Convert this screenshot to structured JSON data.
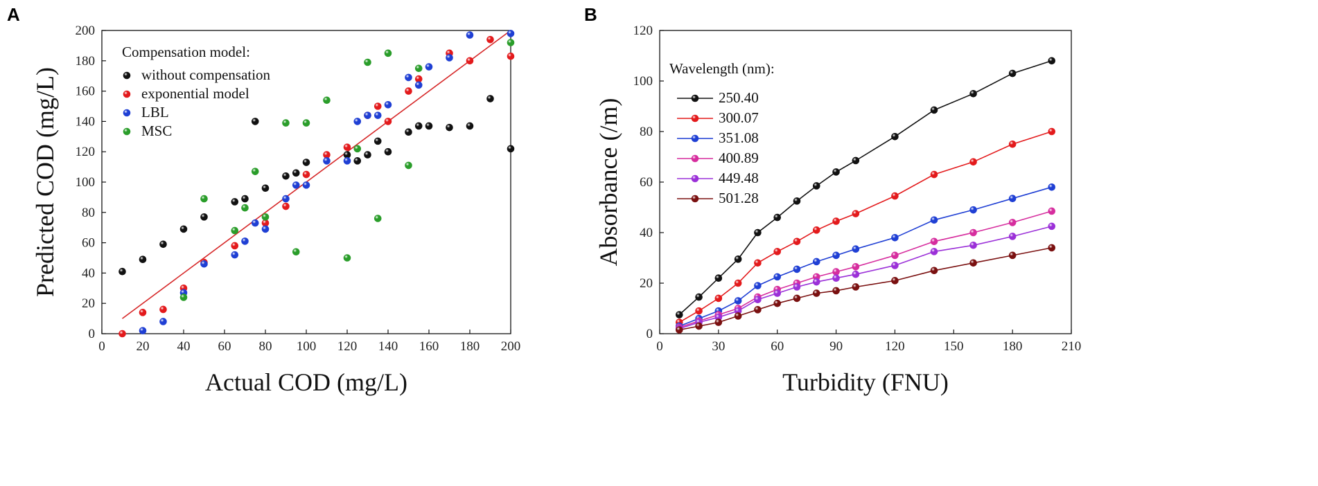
{
  "chart_data": [
    {
      "type": "scatter",
      "panel_label": "A",
      "xlabel": "Actual COD (mg/L)",
      "ylabel": "Predicted COD (mg/L)",
      "xlim": [
        0,
        200
      ],
      "ylim": [
        0,
        200
      ],
      "xticks": [
        "0",
        "20",
        "40",
        "60",
        "80",
        "100",
        "120",
        "140",
        "160",
        "180",
        "200"
      ],
      "yticks": [
        "0",
        "20",
        "40",
        "60",
        "80",
        "100",
        "120",
        "140",
        "160",
        "180",
        "200"
      ],
      "legend_title": "Compensation model:",
      "legend_position": "top-left",
      "fit_line": {
        "x": [
          10,
          200
        ],
        "y": [
          10,
          200
        ],
        "color": "#d62728"
      },
      "series": [
        {
          "name": "without compensation",
          "color": "#111111",
          "x": [
            10,
            20,
            30,
            40,
            50,
            65,
            70,
            75,
            80,
            90,
            95,
            100,
            120,
            125,
            130,
            135,
            140,
            150,
            155,
            160,
            170,
            180,
            190,
            200
          ],
          "y": [
            41,
            49,
            59,
            69,
            77,
            87,
            89,
            140,
            96,
            104,
            106,
            113,
            118,
            114,
            118,
            127,
            120,
            133,
            137,
            137,
            136,
            137,
            155,
            122
          ]
        },
        {
          "name": "exponential model",
          "color": "#e31a1c",
          "x": [
            10,
            20,
            30,
            40,
            50,
            65,
            80,
            90,
            100,
            110,
            120,
            130,
            135,
            140,
            150,
            155,
            170,
            180,
            190,
            200
          ],
          "y": [
            0,
            14,
            16,
            30,
            47,
            58,
            73,
            84,
            105,
            118,
            123,
            144,
            150,
            140,
            160,
            168,
            185,
            180,
            194,
            183
          ]
        },
        {
          "name": "LBL",
          "color": "#1f3fd4",
          "x": [
            20,
            30,
            40,
            50,
            65,
            70,
            75,
            80,
            90,
            95,
            100,
            110,
            120,
            125,
            130,
            135,
            140,
            150,
            155,
            160,
            170,
            180,
            200
          ],
          "y": [
            2,
            8,
            27,
            46,
            52,
            61,
            73,
            69,
            89,
            98,
            98,
            114,
            114,
            140,
            144,
            144,
            151,
            169,
            164,
            176,
            182,
            197,
            198
          ]
        },
        {
          "name": "MSC",
          "color": "#2a9d2a",
          "x": [
            40,
            50,
            65,
            70,
            75,
            80,
            90,
            95,
            100,
            110,
            120,
            125,
            130,
            135,
            140,
            150,
            155,
            200
          ],
          "y": [
            24,
            89,
            68,
            83,
            107,
            77,
            139,
            54,
            139,
            154,
            50,
            122,
            179,
            76,
            185,
            111,
            175,
            192
          ]
        }
      ]
    },
    {
      "type": "line",
      "panel_label": "B",
      "xlabel": "Turbidity (FNU)",
      "ylabel": "Absorbance (/m)",
      "xlim": [
        0,
        210
      ],
      "ylim": [
        0,
        120
      ],
      "xticks": [
        "0",
        "30",
        "60",
        "90",
        "120",
        "150",
        "180",
        "210"
      ],
      "yticks": [
        "0",
        "20",
        "40",
        "60",
        "80",
        "100",
        "120"
      ],
      "legend_title": "Wavelength (nm):",
      "legend_position": "top-left",
      "x": [
        10,
        20,
        30,
        40,
        50,
        60,
        70,
        80,
        90,
        100,
        120,
        140,
        160,
        180,
        200
      ],
      "series": [
        {
          "name": "250.40",
          "color": "#111111",
          "values": [
            7.5,
            14.5,
            22,
            29.5,
            40,
            46,
            52.5,
            58.5,
            64,
            68.5,
            78,
            88.5,
            95,
            103,
            108
          ]
        },
        {
          "name": "300.07",
          "color": "#e31a1c",
          "values": [
            4.5,
            9,
            14,
            20,
            28,
            32.5,
            36.5,
            41,
            44.5,
            47.5,
            54.5,
            63,
            68,
            75,
            80
          ]
        },
        {
          "name": "351.08",
          "color": "#1f3fd4",
          "values": [
            3,
            6,
            9,
            13,
            19,
            22.5,
            25.5,
            28.5,
            31,
            33.5,
            38,
            45,
            49,
            53.5,
            58
          ]
        },
        {
          "name": "400.89",
          "color": "#d62d9e",
          "values": [
            2.5,
            5,
            7.5,
            10,
            14.5,
            17.5,
            20,
            22.5,
            24.5,
            26.5,
            31,
            36.5,
            40,
            44,
            48.5
          ]
        },
        {
          "name": "449.48",
          "color": "#9b30d8",
          "values": [
            2,
            4.5,
            6.5,
            9,
            13.5,
            16,
            18.5,
            20.5,
            22,
            23.5,
            27,
            32.5,
            35,
            38.5,
            42.5
          ]
        },
        {
          "name": "501.28",
          "color": "#7a1010",
          "values": [
            1.5,
            3,
            4.5,
            7,
            9.5,
            12,
            14,
            16,
            17,
            18.5,
            21,
            25,
            28,
            31,
            34
          ]
        }
      ]
    }
  ]
}
